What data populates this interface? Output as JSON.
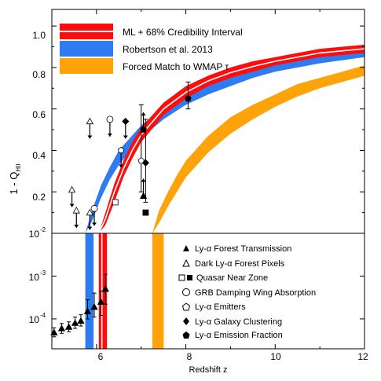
{
  "chart_data": {
    "type": "line",
    "xlabel": "Redshift z",
    "ylabel_main": "1 - Q",
    "ylabel_sub": "HII",
    "xlim": [
      5,
      12
    ],
    "ylim_top": [
      0.0,
      1.08
    ],
    "ylim_bottom": [
      2e-05,
      0.01
    ],
    "y_scale_bottom": "log",
    "x_ticks": [
      "6",
      "8",
      "10",
      "12"
    ],
    "y_ticks_top": [
      "0.2",
      "0.4",
      "0.6",
      "0.8",
      "1.0"
    ],
    "y_ticks_bottom": [
      {
        "base": "10",
        "exp": "-2"
      },
      {
        "base": "10",
        "exp": "-3"
      },
      {
        "base": "10",
        "exp": "-4"
      }
    ],
    "legend_top": [
      {
        "label": "ML + 68% Credibility Interval",
        "color": "#ff0d0d"
      },
      {
        "label": "Robertson et al. 2013",
        "color": "#2f7bf2"
      },
      {
        "label": "Forced Match to WMAP τ",
        "color": "#ffa30a"
      }
    ],
    "legend_bottom": [
      {
        "label": "Ly-α Forest Transmission",
        "marker": "triangle-filled"
      },
      {
        "label": "Dark Ly-α Forest Pixels",
        "marker": "triangle-open"
      },
      {
        "label": "Quasar Near Zone",
        "marker": "square-pair"
      },
      {
        "label": "GRB Damping Wing Absorption",
        "marker": "circle-open"
      },
      {
        "label": "Ly-α Emitters",
        "marker": "pentagon-open"
      },
      {
        "label": "Ly-α Galaxy Clustering",
        "marker": "diamond-filled"
      },
      {
        "label": "Ly-α Emission Fraction",
        "marker": "pentagon-filled"
      }
    ],
    "series": [
      {
        "name": "ML + 68% Credibility Interval",
        "x": [
          6.05,
          6.2,
          6.4,
          6.6,
          6.8,
          7.0,
          7.5,
          8.0,
          8.5,
          9.0,
          9.5,
          10.0,
          11.0,
          12.0
        ],
        "lo": [
          0.0,
          0.04,
          0.15,
          0.27,
          0.36,
          0.44,
          0.57,
          0.65,
          0.71,
          0.75,
          0.78,
          0.81,
          0.85,
          0.87
        ],
        "hi": [
          0.0,
          0.1,
          0.24,
          0.35,
          0.44,
          0.51,
          0.63,
          0.71,
          0.76,
          0.8,
          0.83,
          0.85,
          0.89,
          0.91
        ],
        "ml": [
          0.0,
          0.07,
          0.2,
          0.31,
          0.4,
          0.475,
          0.6,
          0.68,
          0.735,
          0.775,
          0.805,
          0.83,
          0.87,
          0.89
        ]
      },
      {
        "name": "Robertson et al. 2013",
        "x": [
          5.75,
          5.9,
          6.1,
          6.3,
          6.5,
          7.0,
          7.5,
          8.0,
          8.5,
          9.0,
          9.5,
          10.0,
          11.0,
          12.0
        ],
        "lo": [
          0.0,
          0.06,
          0.17,
          0.26,
          0.33,
          0.46,
          0.55,
          0.62,
          0.67,
          0.71,
          0.75,
          0.78,
          0.82,
          0.85
        ],
        "hi": [
          0.0,
          0.11,
          0.23,
          0.32,
          0.4,
          0.52,
          0.61,
          0.68,
          0.72,
          0.76,
          0.79,
          0.82,
          0.86,
          0.88
        ]
      },
      {
        "name": "Forced Match to WMAP τ",
        "x": [
          7.25,
          7.4,
          7.6,
          7.8,
          8.0,
          8.5,
          9.0,
          9.5,
          10.0,
          10.5,
          11.0,
          11.5,
          12.0
        ],
        "lo": [
          0.0,
          0.05,
          0.13,
          0.2,
          0.27,
          0.39,
          0.48,
          0.55,
          0.61,
          0.66,
          0.7,
          0.73,
          0.76
        ],
        "hi": [
          0.0,
          0.11,
          0.2,
          0.28,
          0.35,
          0.47,
          0.56,
          0.62,
          0.67,
          0.72,
          0.75,
          0.78,
          0.81
        ]
      }
    ],
    "points_top": [
      {
        "kind": "triangle-filled",
        "x": 7.05,
        "y": 0.18,
        "arrow": "up"
      },
      {
        "kind": "triangle-open",
        "x": 5.45,
        "y": 0.21,
        "arrow": "down"
      },
      {
        "kind": "triangle-open",
        "x": 5.55,
        "y": 0.11,
        "arrow": "down"
      },
      {
        "kind": "triangle-open",
        "x": 5.85,
        "y": 0.1,
        "arrow": "down"
      },
      {
        "kind": "triangle-open",
        "x": 5.85,
        "y": 0.54,
        "arrow": "down"
      },
      {
        "kind": "circle-open",
        "x": 5.95,
        "y": 0.12,
        "arrow": "down"
      },
      {
        "kind": "circle-open",
        "x": 6.3,
        "y": 0.55,
        "arrow": "down"
      },
      {
        "kind": "square-open",
        "x": 6.42,
        "y": 0.15
      },
      {
        "kind": "square-filled",
        "x": 7.1,
        "y": 0.1
      },
      {
        "kind": "pentagon-open",
        "x": 6.55,
        "y": 0.4,
        "arrow": "down"
      },
      {
        "kind": "pentagon-open",
        "x": 7.0,
        "y": 0.35,
        "err": [
          0.2,
          0.62
        ]
      },
      {
        "kind": "diamond-filled",
        "x": 6.65,
        "y": 0.54,
        "arrow": "down"
      },
      {
        "kind": "diamond-filled",
        "x": 7.1,
        "y": 0.34,
        "err": [
          0.15,
          0.55
        ]
      },
      {
        "kind": "pentagon-filled",
        "x": 7.05,
        "y": 0.5,
        "arrow": "up"
      },
      {
        "kind": "pentagon-filled",
        "x": 8.05,
        "y": 0.65,
        "err": [
          0.6,
          0.73
        ]
      }
    ],
    "points_bottom": [
      {
        "x": 5.05,
        "y": 4.8e-05,
        "err": [
          3.8e-05,
          6.2e-05
        ]
      },
      {
        "x": 5.22,
        "y": 6e-05,
        "err": [
          4.6e-05,
          7.8e-05
        ]
      },
      {
        "x": 5.38,
        "y": 6.5e-05,
        "err": [
          5e-05,
          8.5e-05
        ]
      },
      {
        "x": 5.52,
        "y": 8e-05,
        "err": [
          6e-05,
          0.00011
        ]
      },
      {
        "x": 5.65,
        "y": 9e-05,
        "err": [
          6.8e-05,
          0.000125
        ]
      },
      {
        "x": 5.8,
        "y": 0.00015,
        "err": [
          0.0001,
          0.00028
        ]
      },
      {
        "x": 5.95,
        "y": 0.00019,
        "err": [
          0.00011,
          0.0004
        ]
      },
      {
        "x": 6.1,
        "y": 0.00025,
        "err": [
          0.00012,
          0.00045
        ]
      },
      {
        "x": 6.2,
        "y": 0.0005,
        "err": [
          0.00022,
          0.0011
        ]
      }
    ]
  }
}
